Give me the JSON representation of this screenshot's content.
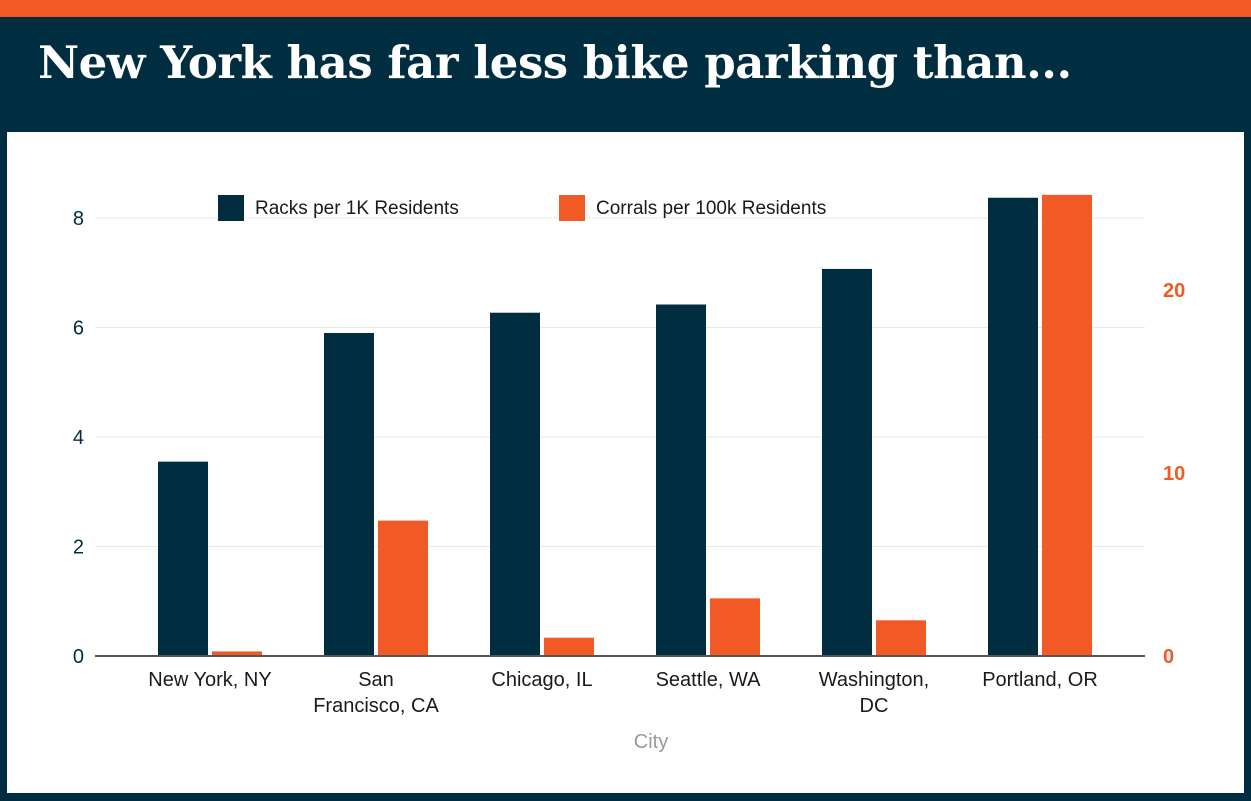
{
  "title": "New York has far less bike parking than...",
  "colors": {
    "frame": "#002d40",
    "accent": "#f15a24",
    "racks": "#002d40",
    "corrals": "#f15a24",
    "grid": "#e8e8e8",
    "axis_title": "#9a9a9a"
  },
  "chart_data": {
    "type": "bar",
    "categories": [
      [
        "New York, NY"
      ],
      [
        "San",
        "Francisco, CA"
      ],
      [
        "Chicago, IL"
      ],
      [
        "Seattle, WA"
      ],
      [
        "Washington,",
        "DC"
      ],
      [
        "Portland, OR"
      ]
    ],
    "series": [
      {
        "name": "Racks per 1K Residents",
        "axis": "left",
        "values": [
          3.55,
          5.9,
          6.27,
          6.42,
          7.07,
          8.37
        ]
      },
      {
        "name": "Corrals per 100k Residents",
        "axis": "right",
        "values": [
          0.25,
          7.4,
          1.0,
          3.15,
          1.95,
          25.2
        ]
      }
    ],
    "xlabel": "City",
    "ylabel": "",
    "y_left": {
      "range": [
        0,
        8.6
      ],
      "ticks": [
        "0",
        "2",
        "4",
        "6",
        "8"
      ]
    },
    "y_right": {
      "range": [
        0,
        25.5
      ],
      "ticks": [
        "0",
        "10",
        "20"
      ]
    },
    "grid": true,
    "legend": "top-center"
  }
}
